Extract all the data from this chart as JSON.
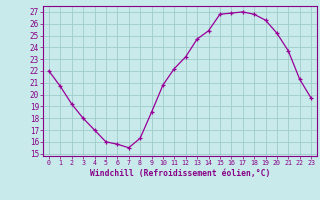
{
  "x": [
    0,
    1,
    2,
    3,
    4,
    5,
    6,
    7,
    8,
    9,
    10,
    11,
    12,
    13,
    14,
    15,
    16,
    17,
    18,
    19,
    20,
    21,
    22,
    23
  ],
  "y": [
    22,
    20.7,
    19.2,
    18.0,
    17.0,
    16.0,
    15.8,
    15.5,
    16.3,
    18.5,
    20.8,
    22.2,
    23.2,
    24.7,
    25.4,
    26.8,
    26.9,
    27.0,
    26.8,
    26.3,
    25.2,
    23.7,
    21.3,
    19.7
  ],
  "line_color": "#990099",
  "marker": "+",
  "bg_color": "#c8eaea",
  "grid_color": "#a0cccc",
  "xlabel": "Windchill (Refroidissement éolien,°C)",
  "xlim": [
    -0.5,
    23.5
  ],
  "ylim": [
    14.8,
    27.5
  ],
  "yticks": [
    15,
    16,
    17,
    18,
    19,
    20,
    21,
    22,
    23,
    24,
    25,
    26,
    27
  ],
  "xticks": [
    0,
    1,
    2,
    3,
    4,
    5,
    6,
    7,
    8,
    9,
    10,
    11,
    12,
    13,
    14,
    15,
    16,
    17,
    18,
    19,
    20,
    21,
    22,
    23
  ],
  "font_color": "#880088",
  "axis_color": "#880088",
  "tick_color": "#880088"
}
